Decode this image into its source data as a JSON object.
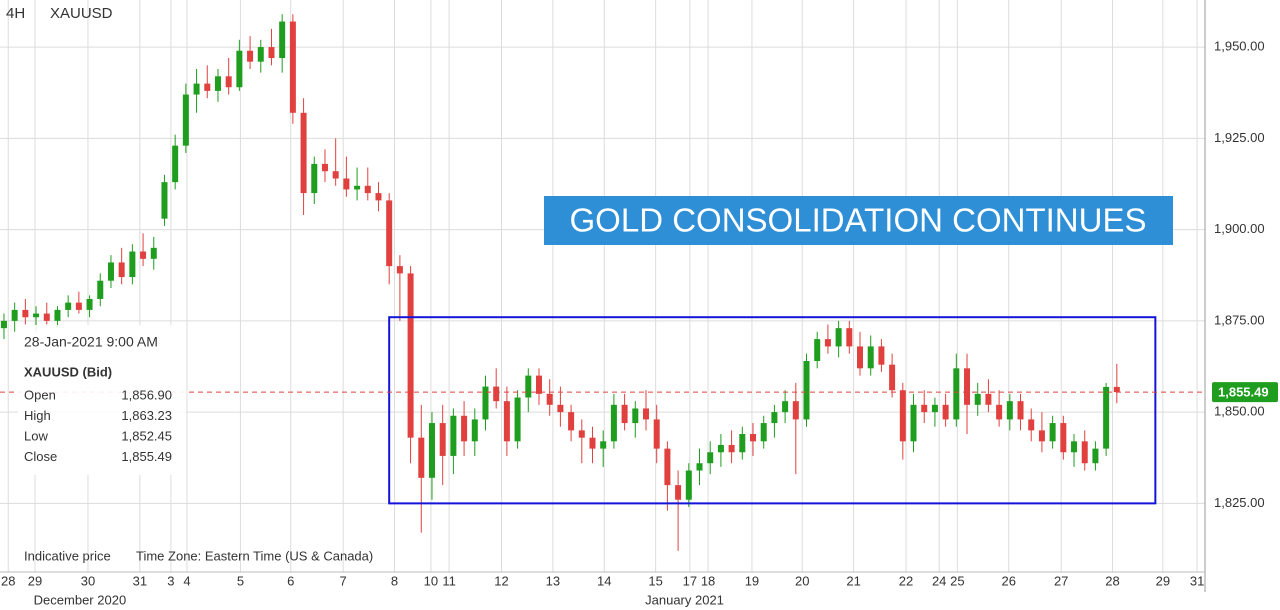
{
  "chart_data": {
    "type": "candlestick",
    "timeframe": "4H",
    "symbol": "XAUUSD",
    "annotation": "GOLD CONSOLIDATION CONTINUES",
    "up_color": "#1f9d1f",
    "down_color": "#e0413f",
    "candles": [
      [
        1873,
        1877,
        1870,
        1875
      ],
      [
        1875,
        1880,
        1872,
        1878
      ],
      [
        1878,
        1881,
        1874,
        1876
      ],
      [
        1876,
        1879,
        1872,
        1877
      ],
      [
        1877,
        1880,
        1874,
        1875
      ],
      [
        1875,
        1879,
        1873,
        1878
      ],
      [
        1878,
        1882,
        1876,
        1880
      ],
      [
        1880,
        1883,
        1877,
        1878
      ],
      [
        1878,
        1882,
        1876,
        1881
      ],
      [
        1881,
        1888,
        1879,
        1886
      ],
      [
        1886,
        1893,
        1884,
        1891
      ],
      [
        1891,
        1895,
        1885,
        1887
      ],
      [
        1887,
        1896,
        1885,
        1894
      ],
      [
        1894,
        1899,
        1890,
        1892
      ],
      [
        1892,
        1898,
        1889,
        1895
      ],
      [
        1903,
        1915,
        1901,
        1913
      ],
      [
        1913,
        1926,
        1911,
        1923
      ],
      [
        1923,
        1940,
        1921,
        1937
      ],
      [
        1937,
        1944,
        1932,
        1940
      ],
      [
        1940,
        1945,
        1936,
        1938
      ],
      [
        1938,
        1944,
        1935,
        1942
      ],
      [
        1942,
        1947,
        1937,
        1939
      ],
      [
        1939,
        1952,
        1938,
        1949
      ],
      [
        1949,
        1953,
        1944,
        1946
      ],
      [
        1946,
        1952,
        1943,
        1950
      ],
      [
        1950,
        1955,
        1945,
        1947
      ],
      [
        1947,
        1959,
        1943,
        1957
      ],
      [
        1957,
        1959,
        1929,
        1932
      ],
      [
        1932,
        1936,
        1904,
        1910
      ],
      [
        1910,
        1920,
        1907,
        1918
      ],
      [
        1918,
        1922,
        1913,
        1916
      ],
      [
        1916,
        1925,
        1912,
        1914
      ],
      [
        1914,
        1920,
        1909,
        1911
      ],
      [
        1911,
        1917,
        1908,
        1912
      ],
      [
        1912,
        1917,
        1908,
        1910
      ],
      [
        1910,
        1913,
        1905,
        1908
      ],
      [
        1908,
        1910,
        1885,
        1890
      ],
      [
        1890,
        1893,
        1875,
        1888
      ],
      [
        1888,
        1890,
        1836,
        1843
      ],
      [
        1843,
        1852,
        1817,
        1832
      ],
      [
        1832,
        1850,
        1826,
        1847
      ],
      [
        1847,
        1852,
        1830,
        1838
      ],
      [
        1838,
        1851,
        1833,
        1849
      ],
      [
        1849,
        1853,
        1838,
        1842
      ],
      [
        1842,
        1851,
        1838,
        1848
      ],
      [
        1848,
        1860,
        1845,
        1857
      ],
      [
        1857,
        1862,
        1851,
        1853
      ],
      [
        1853,
        1857,
        1838,
        1842
      ],
      [
        1842,
        1856,
        1840,
        1854
      ],
      [
        1854,
        1862,
        1850,
        1860
      ],
      [
        1860,
        1862,
        1852,
        1855
      ],
      [
        1855,
        1859,
        1849,
        1852
      ],
      [
        1852,
        1857,
        1846,
        1850
      ],
      [
        1850,
        1852,
        1842,
        1845
      ],
      [
        1845,
        1848,
        1836,
        1843
      ],
      [
        1843,
        1846,
        1836,
        1840
      ],
      [
        1840,
        1845,
        1835,
        1842
      ],
      [
        1842,
        1855,
        1840,
        1852
      ],
      [
        1852,
        1855,
        1845,
        1847
      ],
      [
        1847,
        1853,
        1843,
        1851
      ],
      [
        1851,
        1856,
        1845,
        1848
      ],
      [
        1848,
        1852,
        1836,
        1840
      ],
      [
        1840,
        1842,
        1823,
        1830
      ],
      [
        1830,
        1834,
        1812,
        1826
      ],
      [
        1826,
        1836,
        1824,
        1834
      ],
      [
        1834,
        1840,
        1830,
        1836
      ],
      [
        1836,
        1842,
        1833,
        1839
      ],
      [
        1839,
        1844,
        1835,
        1841
      ],
      [
        1841,
        1845,
        1836,
        1839
      ],
      [
        1839,
        1846,
        1837,
        1844
      ],
      [
        1844,
        1847,
        1838,
        1842
      ],
      [
        1842,
        1849,
        1840,
        1847
      ],
      [
        1847,
        1852,
        1843,
        1850
      ],
      [
        1850,
        1856,
        1847,
        1853
      ],
      [
        1853,
        1858,
        1833,
        1848
      ],
      [
        1848,
        1866,
        1846,
        1864
      ],
      [
        1864,
        1872,
        1862,
        1870
      ],
      [
        1870,
        1874,
        1866,
        1868
      ],
      [
        1868,
        1875,
        1865,
        1873
      ],
      [
        1873,
        1875,
        1866,
        1868
      ],
      [
        1868,
        1872,
        1860,
        1862
      ],
      [
        1862,
        1871,
        1860,
        1868
      ],
      [
        1868,
        1870,
        1861,
        1863
      ],
      [
        1863,
        1866,
        1854,
        1856
      ],
      [
        1856,
        1858,
        1837,
        1842
      ],
      [
        1842,
        1855,
        1839,
        1852
      ],
      [
        1852,
        1856,
        1847,
        1850
      ],
      [
        1850,
        1854,
        1846,
        1852
      ],
      [
        1852,
        1855,
        1846,
        1848
      ],
      [
        1848,
        1866,
        1846,
        1862
      ],
      [
        1862,
        1866,
        1844,
        1852
      ],
      [
        1852,
        1858,
        1849,
        1855
      ],
      [
        1855,
        1859,
        1850,
        1852
      ],
      [
        1852,
        1856,
        1846,
        1848
      ],
      [
        1848,
        1855,
        1845,
        1853
      ],
      [
        1853,
        1855,
        1845,
        1848
      ],
      [
        1848,
        1851,
        1842,
        1845
      ],
      [
        1845,
        1850,
        1839,
        1842
      ],
      [
        1842,
        1849,
        1840,
        1847
      ],
      [
        1847,
        1849,
        1837,
        1839
      ],
      [
        1839,
        1844,
        1835,
        1842
      ],
      [
        1842,
        1845,
        1834,
        1836
      ],
      [
        1836,
        1842,
        1834,
        1840
      ],
      [
        1840,
        1858,
        1838,
        1856.9
      ],
      [
        1856.9,
        1863.23,
        1852.45,
        1855.49
      ]
    ],
    "xlim": [
      -0.37,
      112.24
    ],
    "xticks": [
      {
        "value": 0.4,
        "label": "28"
      },
      {
        "value": 2.9,
        "label": "29"
      },
      {
        "value": 7.85,
        "label": "30"
      },
      {
        "value": 12.7,
        "label": "31"
      },
      {
        "value": 15.6,
        "label": "3"
      },
      {
        "value": 17.1,
        "label": "4"
      },
      {
        "value": 22.1,
        "label": "5"
      },
      {
        "value": 26.8,
        "label": "6"
      },
      {
        "value": 31.7,
        "label": "7"
      },
      {
        "value": 36.5,
        "label": "8"
      },
      {
        "value": 39.9,
        "label": "10"
      },
      {
        "value": 41.6,
        "label": "11"
      },
      {
        "value": 46.5,
        "label": "12"
      },
      {
        "value": 51.3,
        "label": "13"
      },
      {
        "value": 56.1,
        "label": "14"
      },
      {
        "value": 60.9,
        "label": "15"
      },
      {
        "value": 64.1,
        "label": "17"
      },
      {
        "value": 65.8,
        "label": "18"
      },
      {
        "value": 69.9,
        "label": "19"
      },
      {
        "value": 74.6,
        "label": "20"
      },
      {
        "value": 79.4,
        "label": "21"
      },
      {
        "value": 84.3,
        "label": "22"
      },
      {
        "value": 87.4,
        "label": "24"
      },
      {
        "value": 89.1,
        "label": "25"
      },
      {
        "value": 93.9,
        "label": "26"
      },
      {
        "value": 98.8,
        "label": "27"
      },
      {
        "value": 103.6,
        "label": "28"
      },
      {
        "value": 108.3,
        "label": "29"
      },
      {
        "value": 111.5,
        "label": "31"
      }
    ],
    "months": [
      {
        "value": 7.1,
        "label": "December 2020"
      },
      {
        "value": 63.6,
        "label": "January 2021"
      }
    ],
    "ylim": [
      1806.2,
      1962.9
    ],
    "yticks": [
      {
        "value": 1825,
        "label": "1,825.00"
      },
      {
        "value": 1850,
        "label": "1,850.00"
      },
      {
        "value": 1875,
        "label": "1,875.00"
      },
      {
        "value": 1900,
        "label": "1,900.00"
      },
      {
        "value": 1925,
        "label": "1,925.00"
      },
      {
        "value": 1950,
        "label": "1,950.00"
      }
    ],
    "last_price": {
      "value": 1855.49,
      "label": "1,855.49"
    },
    "range_box": {
      "x": [
        36,
        107.6
      ],
      "y": [
        1825,
        1876
      ],
      "color": "#1414d8"
    },
    "grid": true,
    "info_panel": {
      "date": "28-Jan-2021 9:00 AM",
      "symbol": "XAUUSD (Bid)",
      "rows": [
        {
          "label": "Open",
          "value": "1,856.90"
        },
        {
          "label": "High",
          "value": "1,863.23"
        },
        {
          "label": "Low",
          "value": "1,852.45"
        },
        {
          "label": "Close",
          "value": "1,855.49"
        }
      ]
    },
    "footer": [
      "Indicative price",
      "Time Zone: Eastern Time (US & Canada)"
    ]
  }
}
